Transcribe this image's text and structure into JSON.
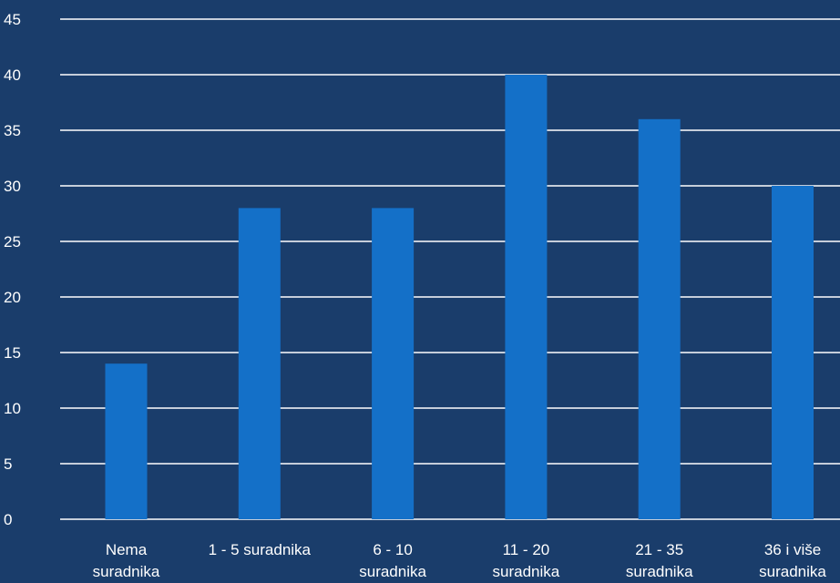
{
  "chart_data": {
    "type": "bar",
    "categories": [
      [
        "Nema",
        "suradnika"
      ],
      [
        "1 - 5 suradnika"
      ],
      [
        "6 - 10",
        "suradnika"
      ],
      [
        "11 - 20",
        "suradnika"
      ],
      [
        "21 - 35",
        "suradnika"
      ],
      [
        "36 i više",
        "suradnika"
      ]
    ],
    "values": [
      14,
      28,
      28,
      40,
      36,
      30
    ],
    "ylim": [
      0,
      45
    ],
    "yticks": [
      0,
      5,
      10,
      15,
      20,
      25,
      30,
      35,
      40,
      45
    ],
    "grid": true,
    "legend": "none"
  },
  "colors": {
    "background": "#1a3d6b",
    "bar": "#1470c8",
    "gridline": "#ffffff",
    "text": "#ffffff"
  }
}
